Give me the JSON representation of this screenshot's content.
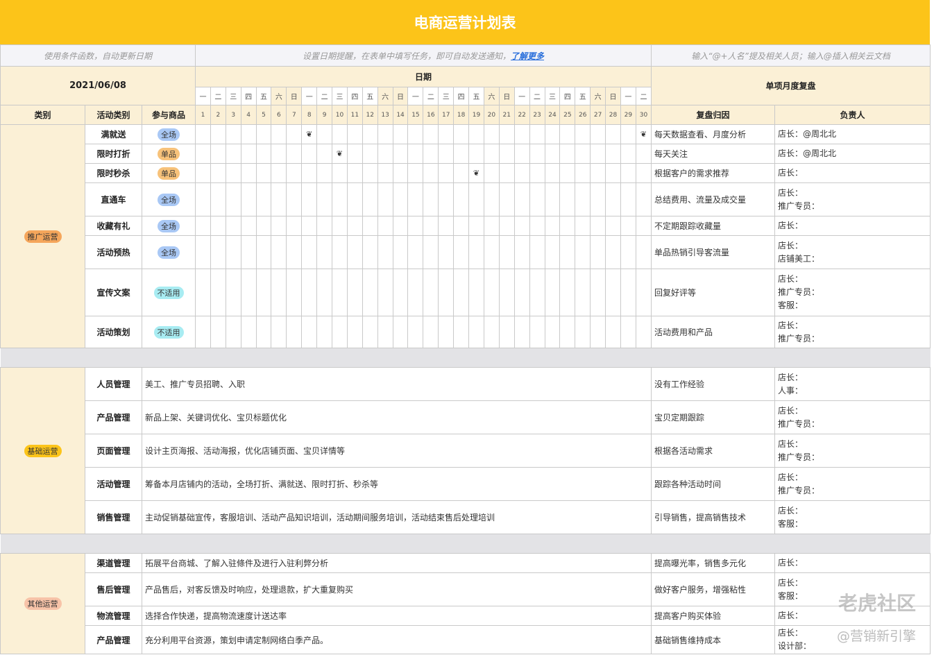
{
  "title": "电商运营计划表",
  "notes": {
    "left": "使用条件函数，自动更新日期",
    "middle": "设置日期提醒，在表单中填写任务，即可自动发送通知，",
    "middle_link": "了解更多",
    "right": "输入“@+人名”提及相关人员；输入@插入相关云文档"
  },
  "date_value": "2021/06/08",
  "date_header": "日期",
  "review_header": "单项月度复盘",
  "columns": {
    "category": "类别",
    "activity": "活动类别",
    "goods": "参与商品",
    "reason": "复盘归因",
    "owner": "负责人"
  },
  "weekdays": [
    "一",
    "二",
    "三",
    "四",
    "五",
    "六",
    "日",
    "一",
    "二",
    "三",
    "四",
    "五",
    "六",
    "日",
    "一",
    "二",
    "三",
    "四",
    "五",
    "六",
    "日",
    "一",
    "二",
    "三",
    "四",
    "五",
    "六",
    "日",
    "一",
    "二"
  ],
  "days": [
    "1",
    "2",
    "3",
    "4",
    "5",
    "6",
    "7",
    "8",
    "9",
    "10",
    "11",
    "12",
    "13",
    "14",
    "15",
    "16",
    "17",
    "18",
    "19",
    "20",
    "21",
    "22",
    "23",
    "24",
    "25",
    "26",
    "27",
    "28",
    "29",
    "30"
  ],
  "tag_colors": {
    "全场": "#a9c8f5",
    "单品": "#f7c27a",
    "不适用": "#a8ecf2",
    "推广运营": "#f5a65b",
    "基础运营": "#fcc419",
    "其他运营": "#f7c3a8"
  },
  "sections": [
    {
      "category": "推广运营",
      "type": "plan",
      "rows": [
        {
          "activity": "满就送",
          "goods": "全场",
          "marks": [
            8,
            30
          ],
          "reason": "每天数据查看、月度分析",
          "owner": [
            "店长：@周北北"
          ]
        },
        {
          "activity": "限时打折",
          "goods": "单品",
          "marks": [
            10
          ],
          "reason": "每天关注",
          "owner": [
            "店长：@周北北"
          ]
        },
        {
          "activity": "限时秒杀",
          "goods": "单品",
          "marks": [
            19
          ],
          "reason": "根据客户的需求推荐",
          "owner": [
            "店长："
          ]
        },
        {
          "activity": "直通车",
          "goods": "全场",
          "marks": [],
          "reason": "总结费用、流量及成交量",
          "owner": [
            "店长：",
            "推广专员："
          ]
        },
        {
          "activity": "收藏有礼",
          "goods": "全场",
          "marks": [],
          "reason": "不定期跟踪收藏量",
          "owner": [
            "店长："
          ]
        },
        {
          "activity": "活动预热",
          "goods": "全场",
          "marks": [],
          "reason": "单品热销引导客流量",
          "owner": [
            "店长：",
            "店铺美工："
          ]
        },
        {
          "activity": "宣传文案",
          "goods": "不适用",
          "marks": [],
          "reason": "回复好评等",
          "owner": [
            "店长：",
            "推广专员：",
            "客服："
          ]
        },
        {
          "activity": "活动策划",
          "goods": "不适用",
          "marks": [],
          "reason": "活动费用和产品",
          "owner": [
            "店长：",
            "推广专员："
          ]
        }
      ]
    },
    {
      "category": "基础运营",
      "type": "desc",
      "rows": [
        {
          "activity": "人员管理",
          "desc": "美工、推广专员招聘、入职",
          "reason": "没有工作经验",
          "owner": [
            "店长：",
            "人事："
          ]
        },
        {
          "activity": "产品管理",
          "desc": "新品上架、关键词优化、宝贝标题优化",
          "reason": "宝贝定期跟踪",
          "owner": [
            "店长：",
            "推广专员："
          ]
        },
        {
          "activity": "页面管理",
          "desc": "设计主页海报、活动海报，优化店铺页面、宝贝详情等",
          "reason": "根据各活动需求",
          "owner": [
            "店长：",
            "推广专员："
          ]
        },
        {
          "activity": "活动管理",
          "desc": "筹备本月店铺内的活动，全场打折、满就送、限时打折、秒杀等",
          "reason": "跟踪各种活动时间",
          "owner": [
            "店长：",
            "推广专员："
          ]
        },
        {
          "activity": "销售管理",
          "desc": "主动促销基础宣传，客服培训、活动产品知识培训，活动期间服务培训，活动结束售后处理培训",
          "reason": "引导销售，提高销售技术",
          "owner": [
            "店长：",
            "客服："
          ]
        }
      ]
    },
    {
      "category": "其他运营",
      "type": "desc",
      "rows": [
        {
          "activity": "渠道管理",
          "desc": "拓展平台商城、了解入驻條件及进行入驻利弊分析",
          "reason": "提高曝光率，销售多元化",
          "owner": [
            "店长："
          ]
        },
        {
          "activity": "售后管理",
          "desc": "产品售后，对客反馈及时响应，处理退款，扩大重复购买",
          "reason": "做好客户服务，增强粘性",
          "owner": [
            "店长：",
            "客服："
          ]
        },
        {
          "activity": "物流管理",
          "desc": "选择合作快递，提高物流速度计送达率",
          "reason": "提高客户购买体验",
          "owner": [
            "店长："
          ]
        },
        {
          "activity": "产品管理",
          "desc": "充分利用平台资源，策划申请定制网络白季产品。",
          "reason": "基础销售维持成本",
          "owner": [
            "店长：",
            "设计部："
          ]
        }
      ]
    }
  ],
  "watermark": {
    "line1": "老虎社区",
    "line2": "@营销新引擎"
  }
}
